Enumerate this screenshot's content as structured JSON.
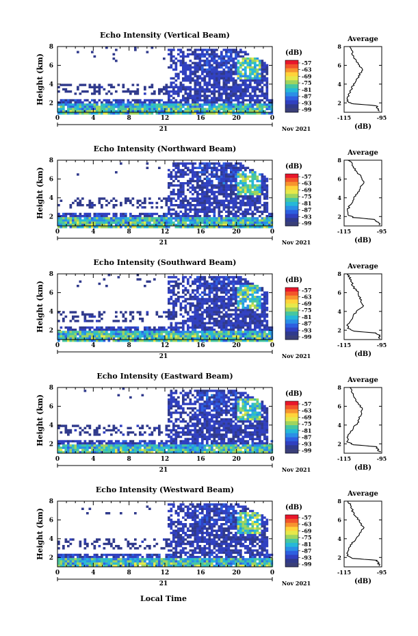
{
  "figure": {
    "date_label": "Nov 2021",
    "xlabel": "Local Time",
    "day_label": "21"
  },
  "colorbar": {
    "unit": "(dB)",
    "ticks": [
      "-57",
      "-63",
      "-69",
      "-75",
      "-81",
      "-87",
      "-93",
      "-99"
    ],
    "colors": [
      "#e8172b",
      "#f2552a",
      "#f7942e",
      "#ffd33a",
      "#e6e84a",
      "#9fd45e",
      "#46c6a0",
      "#26b8d8",
      "#2a8fe6",
      "#2d5fe0",
      "#3040c0",
      "#303a8c",
      "#3a3f78"
    ]
  },
  "chart_data": [
    {
      "type": "heatmap",
      "title": "Echo Intensity (Vertical Beam)",
      "ylabel": "Height (km)",
      "x_ticks": [
        "0",
        "4",
        "8",
        "12",
        "16",
        "20",
        "0"
      ],
      "y_ticks": [
        "2",
        "4",
        "6",
        "8"
      ],
      "xlim": [
        0,
        24
      ],
      "ylim": [
        1,
        8
      ],
      "avg": {
        "title": "Average",
        "xlabel": "(dB)",
        "x_ticks": [
          "-115",
          "-95"
        ],
        "xlim": [
          -115,
          -95
        ],
        "y_ticks": [
          "2",
          "4",
          "6",
          "8"
        ],
        "profile": [
          [
            1.1,
            -96
          ],
          [
            1.4,
            -97
          ],
          [
            1.7,
            -98
          ],
          [
            1.9,
            -110
          ],
          [
            2.1,
            -113
          ],
          [
            2.5,
            -113
          ],
          [
            3.0,
            -112
          ],
          [
            3.5,
            -111
          ],
          [
            4.0,
            -110
          ],
          [
            4.5,
            -108
          ],
          [
            5.0,
            -107
          ],
          [
            5.5,
            -105
          ],
          [
            6.0,
            -107
          ],
          [
            6.5,
            -109
          ],
          [
            7.0,
            -110
          ],
          [
            7.5,
            -111
          ],
          [
            8.0,
            -112
          ]
        ]
      }
    },
    {
      "type": "heatmap",
      "title": "Echo Intensity (Northward Beam)",
      "ylabel": "Height (km)",
      "x_ticks": [
        "0",
        "4",
        "8",
        "12",
        "16",
        "20",
        "0"
      ],
      "y_ticks": [
        "2",
        "4",
        "6",
        "8"
      ],
      "xlim": [
        0,
        24
      ],
      "ylim": [
        1,
        8
      ],
      "avg": {
        "title": "Average",
        "xlabel": "(dB)",
        "x_ticks": [
          "-115",
          "-95"
        ],
        "xlim": [
          -115,
          -95
        ],
        "y_ticks": [
          "2",
          "4",
          "6",
          "8"
        ],
        "profile": [
          [
            1.1,
            -96
          ],
          [
            1.4,
            -97
          ],
          [
            1.7,
            -99
          ],
          [
            1.9,
            -110
          ],
          [
            2.2,
            -113
          ],
          [
            2.7,
            -113
          ],
          [
            3.2,
            -112
          ],
          [
            3.7,
            -110
          ],
          [
            4.2,
            -109
          ],
          [
            4.7,
            -107
          ],
          [
            5.2,
            -106
          ],
          [
            5.7,
            -104
          ],
          [
            6.2,
            -106
          ],
          [
            6.7,
            -108
          ],
          [
            7.2,
            -110
          ],
          [
            7.7,
            -111
          ],
          [
            8.0,
            -113
          ]
        ]
      }
    },
    {
      "type": "heatmap",
      "title": "Echo Intensity (Southward Beam)",
      "ylabel": "Height (km)",
      "x_ticks": [
        "0",
        "4",
        "8",
        "12",
        "16",
        "20",
        "0"
      ],
      "y_ticks": [
        "2",
        "4",
        "6",
        "8"
      ],
      "xlim": [
        0,
        24
      ],
      "ylim": [
        1,
        8
      ],
      "avg": {
        "title": "Average",
        "xlabel": "(dB)",
        "x_ticks": [
          "-115",
          "-95"
        ],
        "xlim": [
          -115,
          -95
        ],
        "y_ticks": [
          "2",
          "4",
          "6",
          "8"
        ],
        "profile": [
          [
            1.1,
            -96
          ],
          [
            1.4,
            -96
          ],
          [
            1.7,
            -98
          ],
          [
            1.9,
            -110
          ],
          [
            2.2,
            -113
          ],
          [
            2.6,
            -113
          ],
          [
            3.1,
            -111
          ],
          [
            3.6,
            -110
          ],
          [
            4.1,
            -108
          ],
          [
            4.6,
            -105
          ],
          [
            5.1,
            -106
          ],
          [
            5.6,
            -107
          ],
          [
            6.1,
            -108
          ],
          [
            6.6,
            -110
          ],
          [
            7.1,
            -111
          ],
          [
            7.6,
            -112
          ],
          [
            8.0,
            -113
          ]
        ]
      }
    },
    {
      "type": "heatmap",
      "title": "Echo Intensity (Eastward Beam)",
      "ylabel": "Height (km)",
      "x_ticks": [
        "0",
        "4",
        "8",
        "12",
        "16",
        "20",
        "0"
      ],
      "y_ticks": [
        "2",
        "4",
        "6",
        "8"
      ],
      "xlim": [
        0,
        24
      ],
      "ylim": [
        1,
        8
      ],
      "avg": {
        "title": "Average",
        "xlabel": "(dB)",
        "x_ticks": [
          "-115",
          "-95"
        ],
        "xlim": [
          -115,
          -95
        ],
        "y_ticks": [
          "2",
          "4",
          "6",
          "8"
        ],
        "profile": [
          [
            1.1,
            -96
          ],
          [
            1.4,
            -97
          ],
          [
            1.7,
            -98
          ],
          [
            1.9,
            -110
          ],
          [
            2.2,
            -113
          ],
          [
            2.7,
            -113
          ],
          [
            3.2,
            -112
          ],
          [
            3.7,
            -110
          ],
          [
            4.2,
            -108
          ],
          [
            4.7,
            -107
          ],
          [
            5.2,
            -106
          ],
          [
            5.7,
            -105
          ],
          [
            6.2,
            -107
          ],
          [
            6.7,
            -109
          ],
          [
            7.2,
            -110
          ],
          [
            7.7,
            -111
          ],
          [
            8.0,
            -112
          ]
        ]
      }
    },
    {
      "type": "heatmap",
      "title": "Echo Intensity (Westward Beam)",
      "ylabel": "Height (km)",
      "x_ticks": [
        "0",
        "4",
        "8",
        "12",
        "16",
        "20",
        "0"
      ],
      "y_ticks": [
        "2",
        "4",
        "6",
        "8"
      ],
      "xlim": [
        0,
        24
      ],
      "ylim": [
        1,
        8
      ],
      "avg": {
        "title": "Average",
        "xlabel": "(dB)",
        "x_ticks": [
          "-115",
          "-95"
        ],
        "xlim": [
          -115,
          -95
        ],
        "y_ticks": [
          "2",
          "4",
          "6",
          "8"
        ],
        "profile": [
          [
            1.1,
            -96
          ],
          [
            1.4,
            -97
          ],
          [
            1.7,
            -98
          ],
          [
            1.9,
            -110
          ],
          [
            2.2,
            -113
          ],
          [
            2.7,
            -113
          ],
          [
            3.2,
            -112
          ],
          [
            3.7,
            -110
          ],
          [
            4.2,
            -108
          ],
          [
            4.7,
            -106
          ],
          [
            5.2,
            -105
          ],
          [
            5.7,
            -106
          ],
          [
            6.2,
            -108
          ],
          [
            6.7,
            -110
          ],
          [
            7.2,
            -111
          ],
          [
            7.7,
            -112
          ],
          [
            8.0,
            -113
          ]
        ]
      }
    }
  ]
}
